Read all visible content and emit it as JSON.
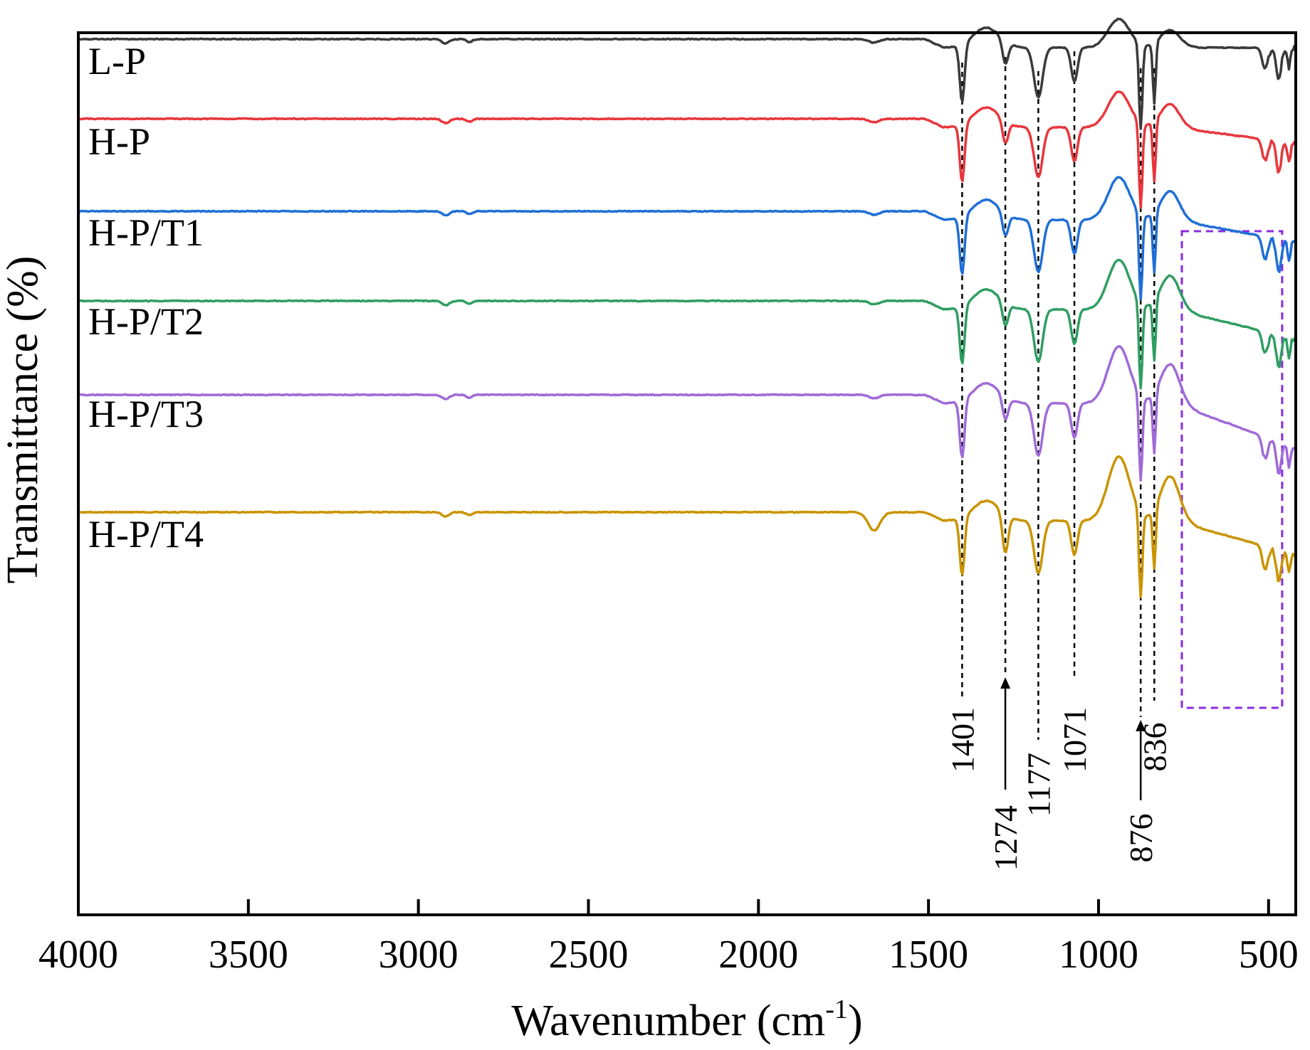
{
  "chart_data": {
    "type": "line",
    "title": "",
    "xlabel": "Wavenumber (cm",
    "xlabel_sup": "-1",
    "xlabel_close": ")",
    "ylabel": "Transmittance (%)",
    "xlim": [
      4000,
      420
    ],
    "x_ticks": [
      {
        "value": 4000,
        "label": "4000"
      },
      {
        "value": 3500,
        "label": "3500"
      },
      {
        "value": 3000,
        "label": "3000"
      },
      {
        "value": 2500,
        "label": "2500"
      },
      {
        "value": 2000,
        "label": "2000"
      },
      {
        "value": 1500,
        "label": "1500"
      },
      {
        "value": 1000,
        "label": "1000"
      },
      {
        "value": 500,
        "label": "500"
      }
    ],
    "series": [
      {
        "name": "L-P",
        "color": "#3a3a3a"
      },
      {
        "name": "H-P",
        "color": "#e8363c"
      },
      {
        "name": "H-P/T1",
        "color": "#1f6fd6"
      },
      {
        "name": "H-P/T2",
        "color": "#2f9e62"
      },
      {
        "name": "H-P/T3",
        "color": "#a06ad8"
      },
      {
        "name": "H-P/T4",
        "color": "#c99400"
      }
    ],
    "peaks": [
      {
        "value": 1401,
        "label": "1401",
        "arrow": false
      },
      {
        "value": 1274,
        "label": "1274",
        "arrow": true
      },
      {
        "value": 1177,
        "label": "1177",
        "arrow": false
      },
      {
        "value": 1071,
        "label": "1071",
        "arrow": false
      },
      {
        "value": 876,
        "label": "876",
        "arrow": true
      },
      {
        "value": 836,
        "label": "836",
        "arrow": false
      }
    ],
    "highlight_region": {
      "x_range": [
        755,
        460
      ],
      "color": "#8a2be2"
    }
  }
}
